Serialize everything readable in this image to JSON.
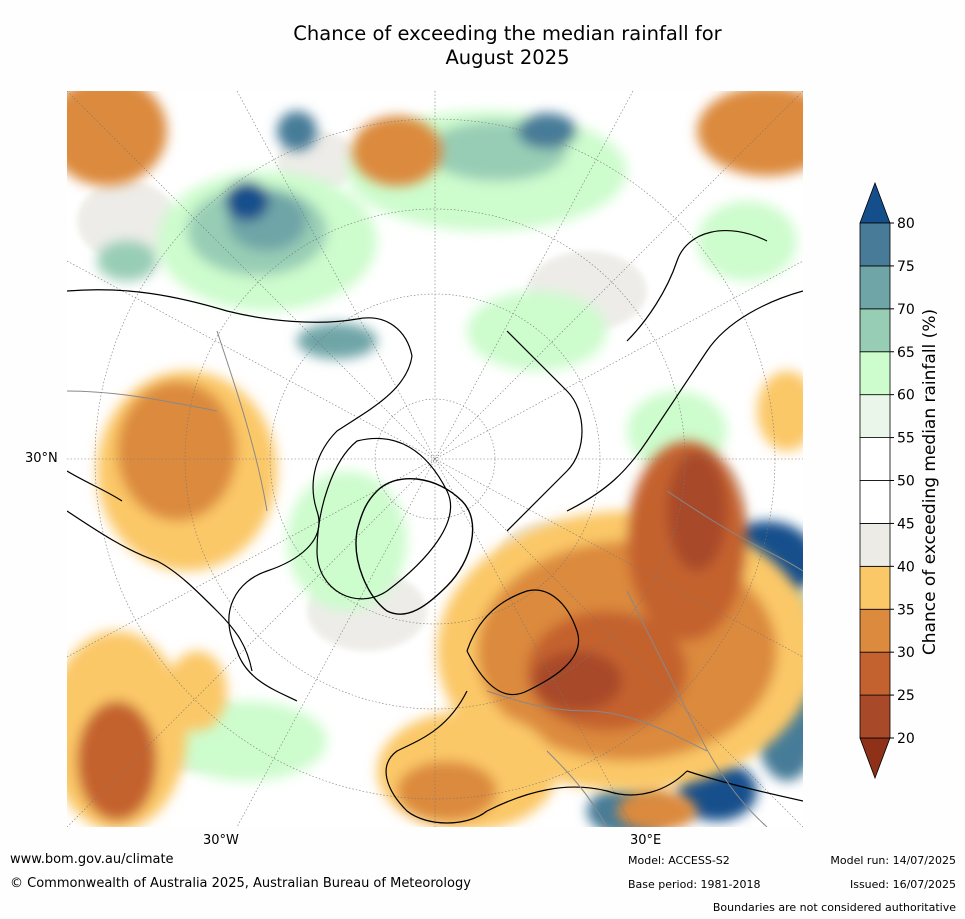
{
  "title_line1": "Chance of exceeding the median rainfall for",
  "title_line2": "August 2025",
  "map": {
    "lat_label": "30°N",
    "lon_labels": [
      "30°W",
      "30°E"
    ]
  },
  "colorbar": {
    "label": "Chance of exceeding median rainfall (%)",
    "ticks": [
      "20",
      "25",
      "30",
      "35",
      "40",
      "45",
      "50",
      "55",
      "60",
      "65",
      "70",
      "75",
      "80"
    ],
    "colors": {
      "below_20": "#8f3018",
      "20_25": "#a8492a",
      "25_30": "#c4622f",
      "30_35": "#dc8a3e",
      "35_40": "#fbc868",
      "40_45": "#ecebe6",
      "45_50": "#ffffff",
      "50_55": "#ffffff",
      "55_60": "#eaf6e9",
      "60_65": "#cdfccd",
      "65_70": "#98cdb5",
      "70_75": "#6fa5a7",
      "75_80": "#477b98",
      "above_80": "#144f8c"
    }
  },
  "footer": {
    "website": "www.bom.gov.au/climate",
    "copyright": "© Commonwealth of Australia 2025, Australian Bureau of Meteorology",
    "model": "Model: ACCESS-S2",
    "base_period": "Base period: 1981-2018",
    "model_run": "Model run: 14/07/2025",
    "issued": "Issued: 16/07/2025",
    "disclaimer": "Boundaries are not considered authoritative"
  }
}
